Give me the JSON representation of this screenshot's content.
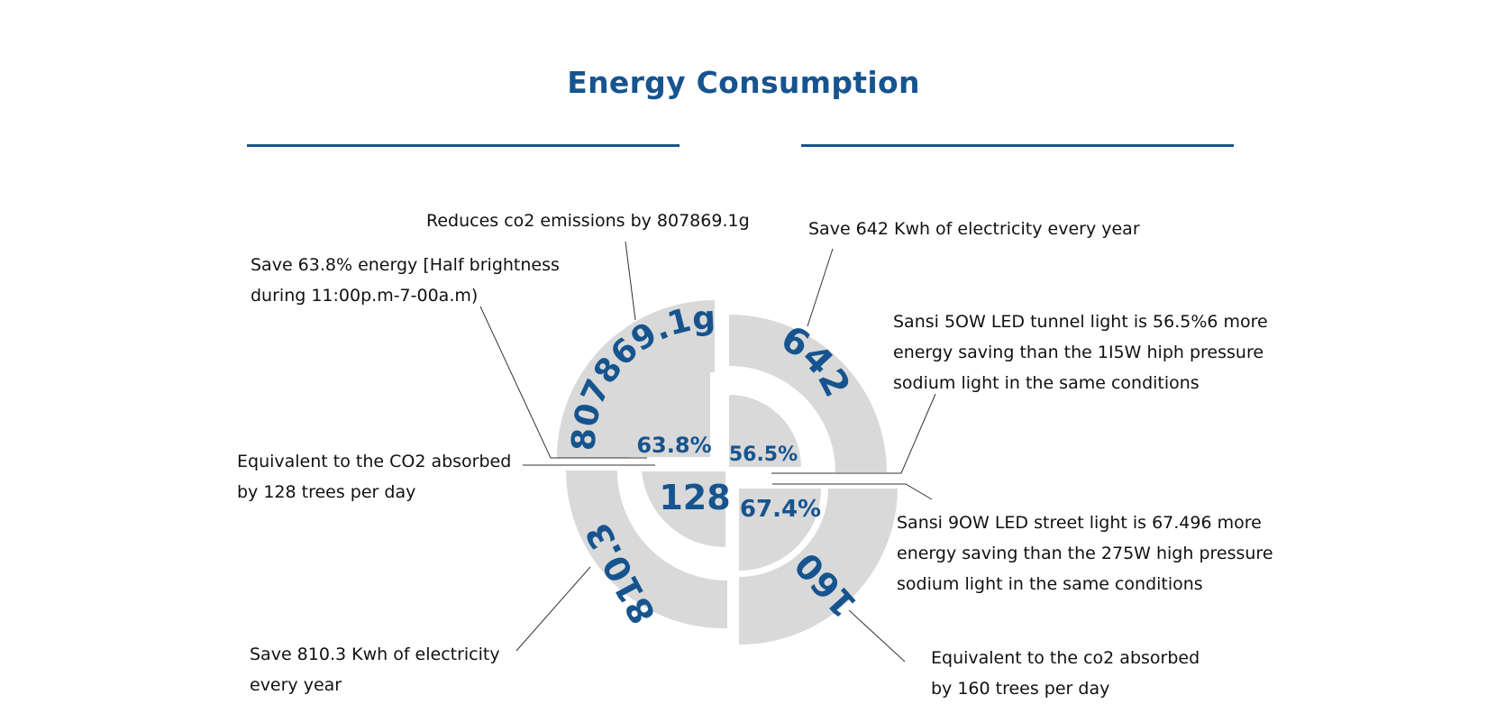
{
  "title": "Energy Consumption",
  "colors": {
    "accent": "#16548f",
    "segment": "#d9d9d9",
    "leader": "#333333"
  },
  "values": {
    "top_left_outer": "807869.1g",
    "top_left_inner": "63.8%",
    "top_right_outer": "642",
    "top_right_inner": "56.5%",
    "bottom_left_outer": "810.3",
    "bottom_left_inner": "128",
    "bottom_right_outer": "160",
    "bottom_right_inner": "67.4%"
  },
  "notes": {
    "co2_emissions": "Reduces co2 emissions by 807869.1g",
    "save_642": "Save 642 Kwh of electricity every year",
    "save_63_8": [
      "Save 63.8% energy [Half brightness",
      "during 11:00p.m-7-00a.m)"
    ],
    "tunnel_light": [
      "Sansi 5OW LED tunnel light is 56.5%6 more",
      "energy saving than the 1I5W hiph pressure",
      "sodium light in the same conditions"
    ],
    "trees_128": [
      "Equivalent to the CO2 absorbed",
      "by 128 trees per day"
    ],
    "street_light": [
      "Sansi 9OW LED street light is 67.496 more",
      "energy saving than the 275W high pressure",
      "sodium light in the same conditions"
    ],
    "save_810_3": [
      "Save 810.3 Kwh of electricity",
      "every year"
    ],
    "trees_160": [
      "Equivalent to the co2 absorbed",
      "by 160 trees per day"
    ]
  }
}
